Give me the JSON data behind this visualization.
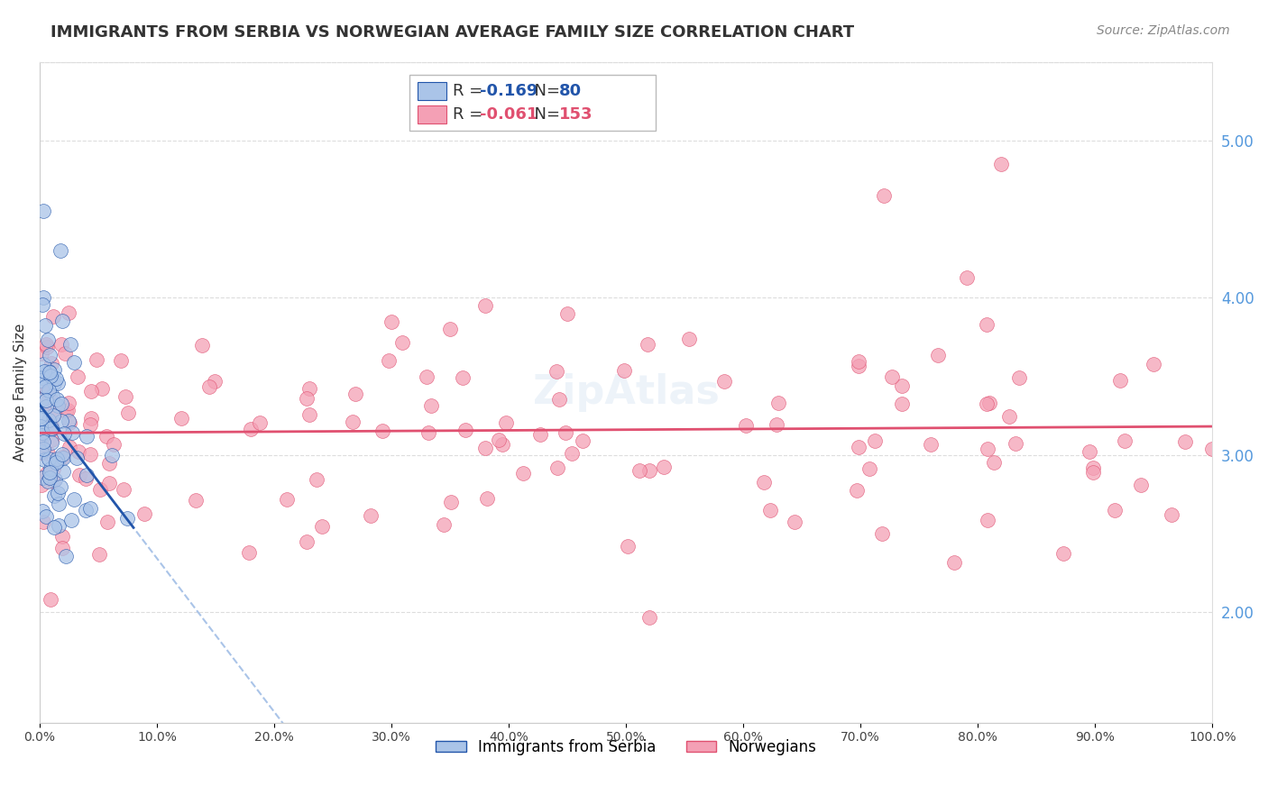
{
  "title": "IMMIGRANTS FROM SERBIA VS NORWEGIAN AVERAGE FAMILY SIZE CORRELATION CHART",
  "source": "Source: ZipAtlas.com",
  "ylabel": "Average Family Size",
  "yticks_right": [
    2.0,
    3.0,
    4.0,
    5.0
  ],
  "xlim": [
    0.0,
    100.0
  ],
  "ylim": [
    1.3,
    5.5
  ],
  "serbia_R": -0.169,
  "serbia_N": 80,
  "norway_R": -0.061,
  "norway_N": 153,
  "serbia_color": "#aac4e8",
  "norway_color": "#f4a0b5",
  "serbia_line_color": "#2255aa",
  "norway_line_color": "#e05070",
  "dashed_line_color": "#aac4e8",
  "background_color": "#ffffff",
  "grid_color": "#dddddd",
  "title_color": "#333333",
  "right_axis_color": "#5599dd"
}
